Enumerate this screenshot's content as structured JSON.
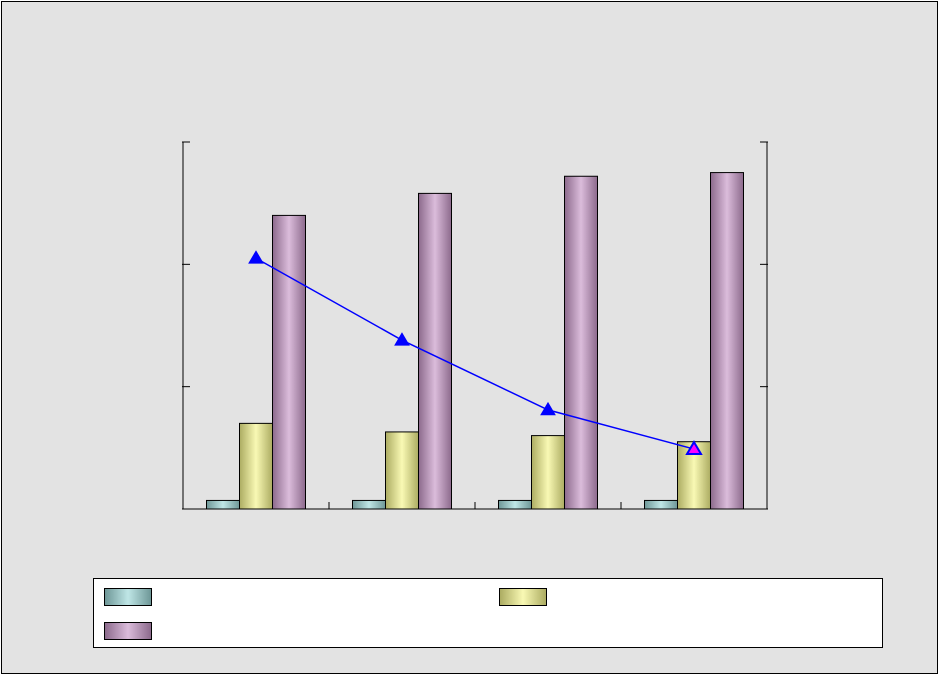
{
  "chart_data": {
    "type": "bar",
    "categories": [
      "",
      "",
      "",
      ""
    ],
    "series": [
      {
        "kind": "bar",
        "values": [
          0.7,
          0.7,
          0.7,
          0.7
        ],
        "color": "#9dd8d8"
      },
      {
        "kind": "bar",
        "values": [
          7.0,
          6.3,
          6.0,
          5.5
        ],
        "color": "#f5f58c"
      },
      {
        "kind": "bar",
        "values": [
          24.0,
          25.8,
          27.2,
          27.5
        ],
        "color": "#c898c8"
      },
      {
        "kind": "line",
        "axis": "y2",
        "values": [
          2.05,
          1.38,
          0.81,
          0.49
        ],
        "color": "#0000ff",
        "marker": "triangle",
        "highlight_last": "#ff00ff"
      }
    ],
    "title": "",
    "xlabel": "",
    "ylabel": "",
    "y2label": "",
    "ylim": [
      0,
      30
    ],
    "y2lim": [
      0,
      3
    ],
    "yticks": [
      0,
      10,
      20,
      30
    ],
    "y2ticks": [
      0,
      1,
      2,
      3
    ],
    "grid": false,
    "legend": "bottom",
    "legend_entries": [
      {
        "label": "",
        "color": "#9dd8d8"
      },
      {
        "label": "",
        "color": "#f5f58c"
      },
      {
        "label": "",
        "color": "#c898c8"
      }
    ]
  }
}
